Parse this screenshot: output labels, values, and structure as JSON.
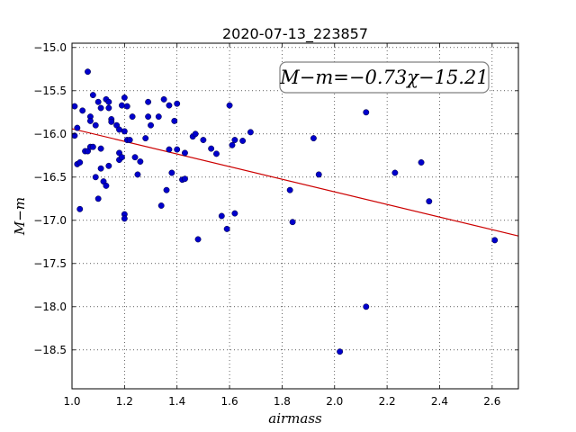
{
  "chart_data": {
    "type": "scatter",
    "title": "2020-07-13_223857",
    "xlabel": "airmass",
    "ylabel": "M−m",
    "xlim": [
      1.0,
      2.7
    ],
    "ylim": [
      -18.95,
      -14.95
    ],
    "y_inverted": true,
    "grid": true,
    "x_ticks": [
      "1.0",
      "1.2",
      "1.4",
      "1.6",
      "1.8",
      "2.0",
      "2.2",
      "2.4",
      "2.6"
    ],
    "y_ticks": [
      "−15.0",
      "−15.5",
      "−16.0",
      "−16.5",
      "−17.0",
      "−17.5",
      "−18.0",
      "−18.5"
    ],
    "annotation": "M−m=−0.73χ−15.21",
    "fit": {
      "slope": -0.73,
      "intercept": -15.21,
      "color": "#cc0000"
    },
    "marker_color": "#0000cc",
    "points": [
      [
        1.01,
        -15.68
      ],
      [
        1.01,
        -16.02
      ],
      [
        1.02,
        -15.93
      ],
      [
        1.02,
        -16.35
      ],
      [
        1.03,
        -16.33
      ],
      [
        1.03,
        -16.87
      ],
      [
        1.04,
        -15.73
      ],
      [
        1.05,
        -16.2
      ],
      [
        1.06,
        -15.28
      ],
      [
        1.06,
        -16.2
      ],
      [
        1.07,
        -15.8
      ],
      [
        1.07,
        -15.85
      ],
      [
        1.07,
        -16.15
      ],
      [
        1.08,
        -15.55
      ],
      [
        1.08,
        -16.15
      ],
      [
        1.09,
        -15.9
      ],
      [
        1.09,
        -16.5
      ],
      [
        1.1,
        -15.63
      ],
      [
        1.1,
        -16.75
      ],
      [
        1.11,
        -15.7
      ],
      [
        1.11,
        -16.17
      ],
      [
        1.11,
        -16.4
      ],
      [
        1.12,
        -16.55
      ],
      [
        1.13,
        -15.6
      ],
      [
        1.13,
        -16.6
      ],
      [
        1.14,
        -15.63
      ],
      [
        1.14,
        -15.7
      ],
      [
        1.14,
        -16.37
      ],
      [
        1.15,
        -15.83
      ],
      [
        1.15,
        -15.86
      ],
      [
        1.17,
        -15.9
      ],
      [
        1.18,
        -15.95
      ],
      [
        1.18,
        -16.22
      ],
      [
        1.18,
        -16.3
      ],
      [
        1.19,
        -15.67
      ],
      [
        1.19,
        -16.27
      ],
      [
        1.2,
        -15.58
      ],
      [
        1.2,
        -15.97
      ],
      [
        1.2,
        -16.93
      ],
      [
        1.2,
        -16.98
      ],
      [
        1.21,
        -15.68
      ],
      [
        1.21,
        -16.07
      ],
      [
        1.22,
        -16.07
      ],
      [
        1.23,
        -15.8
      ],
      [
        1.24,
        -16.27
      ],
      [
        1.25,
        -16.47
      ],
      [
        1.26,
        -16.32
      ],
      [
        1.28,
        -16.05
      ],
      [
        1.29,
        -15.63
      ],
      [
        1.29,
        -15.8
      ],
      [
        1.3,
        -15.9
      ],
      [
        1.33,
        -15.8
      ],
      [
        1.34,
        -16.83
      ],
      [
        1.35,
        -15.6
      ],
      [
        1.36,
        -16.65
      ],
      [
        1.37,
        -16.18
      ],
      [
        1.37,
        -15.67
      ],
      [
        1.38,
        -16.45
      ],
      [
        1.39,
        -15.85
      ],
      [
        1.4,
        -16.18
      ],
      [
        1.4,
        -15.65
      ],
      [
        1.42,
        -16.53
      ],
      [
        1.43,
        -16.22
      ],
      [
        1.43,
        -16.52
      ],
      [
        1.46,
        -16.03
      ],
      [
        1.47,
        -16.0
      ],
      [
        1.48,
        -17.22
      ],
      [
        1.5,
        -16.07
      ],
      [
        1.53,
        -16.17
      ],
      [
        1.55,
        -16.23
      ],
      [
        1.57,
        -16.95
      ],
      [
        1.59,
        -17.1
      ],
      [
        1.6,
        -15.67
      ],
      [
        1.61,
        -16.13
      ],
      [
        1.62,
        -16.07
      ],
      [
        1.62,
        -16.92
      ],
      [
        1.65,
        -16.08
      ],
      [
        1.68,
        -15.98
      ],
      [
        1.83,
        -16.65
      ],
      [
        1.84,
        -17.02
      ],
      [
        1.92,
        -16.05
      ],
      [
        1.94,
        -16.47
      ],
      [
        2.02,
        -18.52
      ],
      [
        2.12,
        -15.75
      ],
      [
        2.12,
        -18.0
      ],
      [
        2.23,
        -16.45
      ],
      [
        2.33,
        -16.33
      ],
      [
        2.36,
        -16.78
      ],
      [
        2.61,
        -17.23
      ]
    ]
  }
}
